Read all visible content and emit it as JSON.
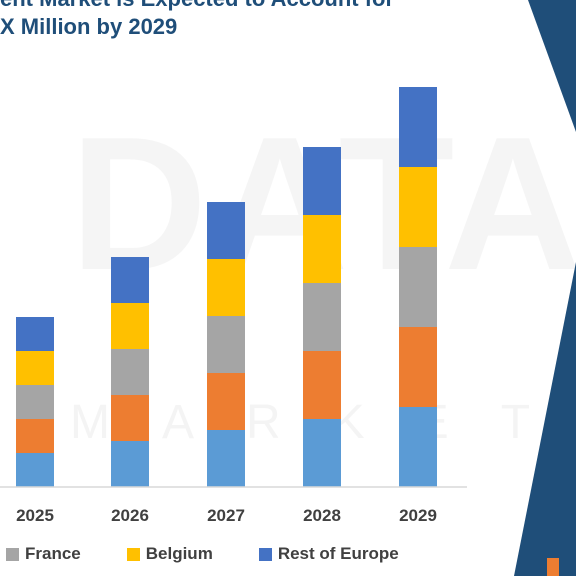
{
  "title_lines": [
    "ent Market is Expected to Account for",
    "X Million by 2029"
  ],
  "watermark": {
    "main": "DATABR",
    "sub": "MARKETRE"
  },
  "colors": {
    "decor_dark": "#1f4e79",
    "decor_blue": "#2e75b6",
    "decor_orange": "#ed7d31"
  },
  "chart_data": {
    "type": "bar",
    "stacked": true,
    "title": "",
    "xlabel": "",
    "ylabel": "",
    "categories": [
      "2025",
      "2026",
      "2027",
      "2028",
      "2029"
    ],
    "ylim": [
      0,
      400
    ],
    "grid": false,
    "series": [
      {
        "color": "#5b9bd5",
        "values": [
          34,
          46,
          57,
          68,
          80
        ]
      },
      {
        "color": "#ed7d31",
        "values": [
          34,
          46,
          57,
          68,
          80
        ]
      },
      {
        "name": "France",
        "color": "#a5a5a5",
        "values": [
          34,
          46,
          57,
          68,
          80
        ]
      },
      {
        "name": "Belgium",
        "color": "#ffc000",
        "values": [
          34,
          46,
          57,
          68,
          80
        ]
      },
      {
        "name": "Rest of Europe",
        "color": "#4472c4",
        "values": [
          34,
          46,
          57,
          68,
          80
        ]
      }
    ],
    "legend": {
      "placement": "bottom",
      "entries": [
        {
          "label": "France",
          "color": "#a5a5a5"
        },
        {
          "label": "Belgium",
          "color": "#ffc000"
        },
        {
          "label": "Rest of Europe",
          "color": "#4472c4"
        }
      ]
    }
  }
}
